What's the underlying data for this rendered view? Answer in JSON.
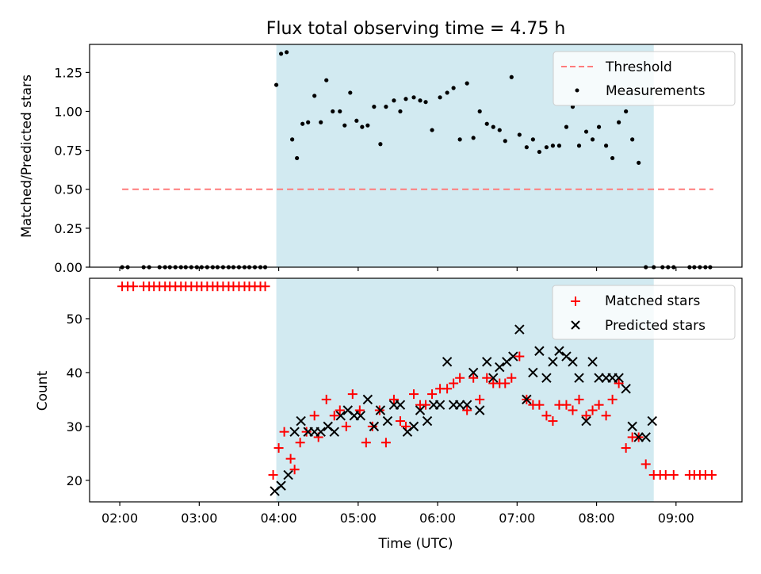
{
  "title": "Flux total observing time = 4.75 h",
  "colors": {
    "shade": "#add8e6",
    "threshold": "#ff7b7b",
    "matched": "#ff0000",
    "predicted": "#000000",
    "measurements": "#000000"
  },
  "chart_data": [
    {
      "type": "scatter",
      "ylabel": "Matched/Predicted stars",
      "ylim": [
        0,
        1.43
      ],
      "yticks": [
        "0.00",
        "0.25",
        "0.50",
        "0.75",
        "1.00",
        "1.25"
      ],
      "ytick_values": [
        0,
        0.25,
        0.5,
        0.75,
        1.0,
        1.25
      ],
      "xlim": [
        1.62,
        9.83
      ],
      "shaded_span_hours": [
        3.97,
        8.72
      ],
      "legend_position": "upper right",
      "series": [
        {
          "name": "Threshold",
          "kind": "dashed-line",
          "x": [
            2.03,
            9.47
          ],
          "y": [
            0.5,
            0.5
          ]
        },
        {
          "name": "Measurements",
          "kind": "dots",
          "x": [
            2.03,
            2.1,
            2.3,
            2.37,
            2.5,
            2.57,
            2.63,
            2.7,
            2.77,
            2.83,
            2.9,
            2.97,
            3.03,
            3.1,
            3.17,
            3.23,
            3.3,
            3.37,
            3.43,
            3.5,
            3.57,
            3.63,
            3.7,
            3.77,
            3.83,
            3.97,
            4.03,
            4.1,
            4.17,
            4.23,
            4.3,
            4.37,
            4.45,
            4.53,
            4.6,
            4.68,
            4.77,
            4.83,
            4.9,
            4.98,
            5.05,
            5.12,
            5.2,
            5.28,
            5.35,
            5.45,
            5.53,
            5.6,
            5.7,
            5.78,
            5.85,
            5.93,
            6.03,
            6.12,
            6.2,
            6.28,
            6.37,
            6.45,
            6.53,
            6.62,
            6.7,
            6.78,
            6.85,
            6.93,
            7.03,
            7.12,
            7.2,
            7.28,
            7.37,
            7.45,
            7.53,
            7.62,
            7.7,
            7.78,
            7.87,
            7.95,
            8.03,
            8.12,
            8.2,
            8.28,
            8.37,
            8.45,
            8.53,
            8.62,
            8.72,
            8.83,
            8.9,
            8.97,
            9.17,
            9.23,
            9.3,
            9.37,
            9.43
          ],
          "y": [
            0,
            0,
            0,
            0,
            0,
            0,
            0,
            0,
            0,
            0,
            0,
            0,
            0,
            0,
            0,
            0,
            0,
            0,
            0,
            0,
            0,
            0,
            0,
            0,
            0,
            1.17,
            1.37,
            1.38,
            0.82,
            0.7,
            0.92,
            0.93,
            1.1,
            0.93,
            1.2,
            1.0,
            1.0,
            0.91,
            1.12,
            0.94,
            0.9,
            0.91,
            1.03,
            0.79,
            1.03,
            1.07,
            1.0,
            1.08,
            1.09,
            1.07,
            1.06,
            0.88,
            1.09,
            1.12,
            1.15,
            0.82,
            1.18,
            0.83,
            1.0,
            0.92,
            0.9,
            0.88,
            0.81,
            1.22,
            0.85,
            0.77,
            0.82,
            0.74,
            0.77,
            0.78,
            0.78,
            0.9,
            1.03,
            0.78,
            0.87,
            0.82,
            0.9,
            0.78,
            0.7,
            0.93,
            1.0,
            0.82,
            0.67,
            0,
            0,
            0,
            0,
            0,
            0,
            0,
            0,
            0,
            0
          ]
        }
      ]
    },
    {
      "type": "scatter",
      "ylabel": "Count",
      "xlabel": "Time (UTC)",
      "ylim": [
        16,
        57.5
      ],
      "yticks": [
        "20",
        "30",
        "40",
        "50"
      ],
      "ytick_values": [
        20,
        30,
        40,
        50
      ],
      "xlim": [
        1.62,
        9.83
      ],
      "xticks": [
        "02:00",
        "03:00",
        "04:00",
        "05:00",
        "06:00",
        "07:00",
        "08:00",
        "09:00"
      ],
      "xtick_values": [
        2,
        3,
        4,
        5,
        6,
        7,
        8,
        9
      ],
      "shaded_span_hours": [
        3.97,
        8.72
      ],
      "legend_position": "upper right",
      "series": [
        {
          "name": "Matched stars",
          "kind": "plus",
          "x": [
            2.03,
            2.1,
            2.17,
            2.3,
            2.37,
            2.43,
            2.5,
            2.57,
            2.63,
            2.7,
            2.77,
            2.83,
            2.9,
            2.97,
            3.03,
            3.1,
            3.17,
            3.23,
            3.3,
            3.37,
            3.43,
            3.5,
            3.57,
            3.63,
            3.7,
            3.77,
            3.83,
            3.93,
            4.0,
            4.07,
            4.15,
            4.2,
            4.27,
            4.35,
            4.45,
            4.5,
            4.6,
            4.7,
            4.77,
            4.85,
            4.93,
            5.02,
            5.1,
            5.18,
            5.27,
            5.35,
            5.45,
            5.53,
            5.6,
            5.7,
            5.78,
            5.85,
            5.93,
            6.03,
            6.12,
            6.2,
            6.28,
            6.37,
            6.45,
            6.53,
            6.62,
            6.7,
            6.78,
            6.85,
            6.93,
            7.03,
            7.12,
            7.2,
            7.28,
            7.37,
            7.45,
            7.53,
            7.62,
            7.7,
            7.78,
            7.87,
            7.95,
            8.03,
            8.12,
            8.2,
            8.28,
            8.37,
            8.45,
            8.53,
            8.62,
            8.72,
            8.8,
            8.87,
            8.97,
            9.17,
            9.23,
            9.3,
            9.37,
            9.45
          ],
          "y": [
            56,
            56,
            56,
            56,
            56,
            56,
            56,
            56,
            56,
            56,
            56,
            56,
            56,
            56,
            56,
            56,
            56,
            56,
            56,
            56,
            56,
            56,
            56,
            56,
            56,
            56,
            56,
            21,
            26,
            29,
            24,
            22,
            27,
            29,
            32,
            28,
            35,
            32,
            33,
            30,
            36,
            33,
            27,
            30,
            33,
            27,
            35,
            31,
            30,
            36,
            34,
            34,
            36,
            37,
            37,
            38,
            39,
            33,
            39,
            35,
            39,
            38,
            38,
            38,
            39,
            43,
            35,
            34,
            34,
            32,
            31,
            34,
            34,
            33,
            35,
            32,
            33,
            34,
            32,
            35,
            38,
            26,
            28,
            28,
            23,
            21,
            21,
            21,
            21,
            21,
            21,
            21,
            21,
            21
          ],
          "y_note_skip": true
        },
        {
          "name": "Predicted stars",
          "kind": "x",
          "x": [
            3.95,
            4.03,
            4.12,
            4.2,
            4.28,
            4.37,
            4.45,
            4.53,
            4.62,
            4.7,
            4.78,
            4.87,
            4.95,
            5.03,
            5.12,
            5.2,
            5.28,
            5.37,
            5.45,
            5.53,
            5.62,
            5.7,
            5.78,
            5.87,
            5.95,
            6.03,
            6.12,
            6.2,
            6.28,
            6.37,
            6.45,
            6.53,
            6.62,
            6.7,
            6.78,
            6.87,
            6.95,
            7.03,
            7.12,
            7.2,
            7.28,
            7.37,
            7.45,
            7.53,
            7.62,
            7.7,
            7.78,
            7.87,
            7.95,
            8.03,
            8.12,
            8.2,
            8.28,
            8.37,
            8.45,
            8.53,
            8.62,
            8.7
          ],
          "y": [
            18,
            19,
            21,
            29,
            31,
            29,
            29,
            29,
            30,
            29,
            32,
            33,
            32,
            32,
            35,
            30,
            33,
            31,
            34,
            34,
            29,
            30,
            33,
            31,
            34,
            34,
            42,
            34,
            34,
            34,
            40,
            33,
            42,
            39,
            41,
            42,
            43,
            48,
            35,
            40,
            44,
            39,
            42,
            44,
            43,
            42,
            39,
            31,
            42,
            39,
            39,
            39,
            39,
            37,
            30,
            28,
            28,
            31
          ]
        }
      ]
    }
  ],
  "legends": {
    "top": [
      "Threshold",
      "Measurements"
    ],
    "bottom": [
      "Matched stars",
      "Predicted stars"
    ]
  }
}
